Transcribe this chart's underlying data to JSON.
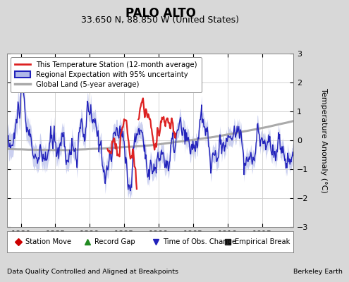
{
  "title": "PALO ALTO",
  "subtitle": "33.650 N, 88.850 W (United States)",
  "ylabel": "Temperature Anomaly (°C)",
  "xlim": [
    1878.0,
    1919.5
  ],
  "ylim": [
    -3,
    3
  ],
  "xticks": [
    1880,
    1885,
    1890,
    1895,
    1900,
    1905,
    1910,
    1915
  ],
  "yticks": [
    -3,
    -2,
    -1,
    0,
    1,
    2,
    3
  ],
  "background_color": "#d8d8d8",
  "plot_background": "#ffffff",
  "station_color": "#dd2222",
  "regional_color": "#2222bb",
  "regional_fill_color": "#b0b8e8",
  "global_color": "#aaaaaa",
  "footer_left": "Data Quality Controlled and Aligned at Breakpoints",
  "footer_right": "Berkeley Earth",
  "legend_labels": [
    "This Temperature Station (12-month average)",
    "Regional Expectation with 95% uncertainty",
    "Global Land (5-year average)"
  ],
  "bottom_legend": [
    {
      "label": "Station Move",
      "color": "#cc0000",
      "marker": "D"
    },
    {
      "label": "Record Gap",
      "color": "#228B22",
      "marker": "^"
    },
    {
      "label": "Time of Obs. Change",
      "color": "#2222bb",
      "marker": "v"
    },
    {
      "label": "Empirical Break",
      "color": "#222222",
      "marker": "s"
    }
  ]
}
